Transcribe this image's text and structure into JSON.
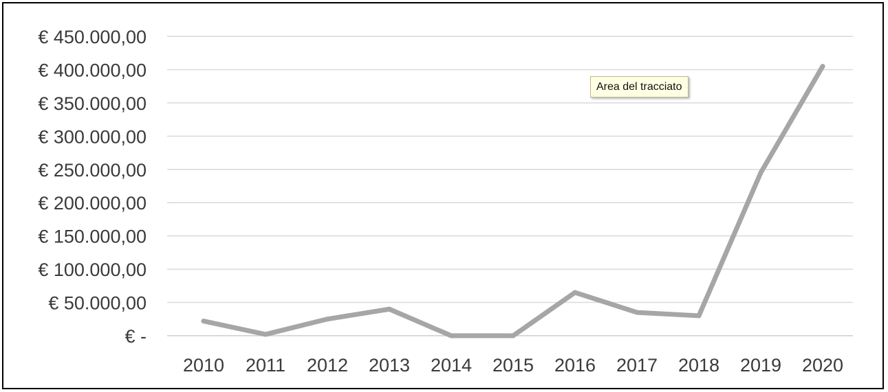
{
  "chart_data": {
    "type": "line",
    "categories": [
      "2010",
      "2011",
      "2012",
      "2013",
      "2014",
      "2015",
      "2016",
      "2017",
      "2018",
      "2019",
      "2020"
    ],
    "series": [
      {
        "values": [
          22000,
          2000,
          25000,
          40000,
          0,
          0,
          65000,
          35000,
          30000,
          245000,
          405000
        ]
      }
    ],
    "ylim": [
      0,
      450000
    ],
    "y_ticks": [
      0,
      50000,
      100000,
      150000,
      200000,
      250000,
      300000,
      350000,
      400000,
      450000
    ],
    "y_tick_labels": [
      "€ -",
      "€ 50.000,00",
      "€ 100.000,00",
      "€ 150.000,00",
      "€ 200.000,00",
      "€ 250.000,00",
      "€ 300.000,00",
      "€ 350.000,00",
      "€ 400.000,00",
      "€ 450.000,00"
    ],
    "grid": true,
    "line_color": "#a6a6a6",
    "grid_color": "#d9d9d9",
    "tooltip": "Area del tracciato"
  }
}
